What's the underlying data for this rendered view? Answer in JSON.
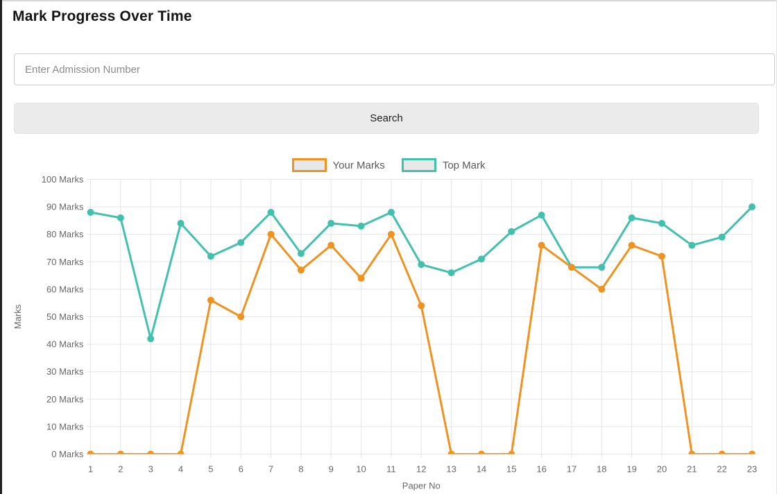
{
  "page": {
    "title": "Mark Progress Over Time"
  },
  "search": {
    "placeholder": "Enter Admission Number",
    "value": "",
    "button_label": "Search"
  },
  "chart_data": {
    "type": "line",
    "title": "",
    "xlabel": "Paper No",
    "ylabel": "Marks",
    "x": [
      1,
      2,
      3,
      4,
      5,
      6,
      7,
      8,
      9,
      10,
      11,
      12,
      13,
      14,
      15,
      16,
      17,
      18,
      19,
      20,
      21,
      22,
      23
    ],
    "series": [
      {
        "name": "Your Marks",
        "color": "#EF921F",
        "values": [
          0,
          0,
          0,
          0,
          56,
          50,
          80,
          67,
          76,
          64,
          80,
          54,
          0,
          0,
          0,
          76,
          68,
          60,
          76,
          72,
          0,
          0,
          0
        ]
      },
      {
        "name": "Top Mark",
        "color": "#41C0AE",
        "values": [
          88,
          86,
          42,
          84,
          72,
          77,
          88,
          73,
          84,
          83,
          88,
          69,
          66,
          71,
          81,
          87,
          68,
          68,
          86,
          84,
          76,
          79,
          90
        ]
      }
    ],
    "ylim": [
      0,
      100
    ],
    "ytick_step": 10,
    "ytick_suffix": " Marks",
    "grid": true,
    "legend_position": "top",
    "grid_color": "#e5e5e5",
    "tick_color": "#666666",
    "legend_box_fill": "#e8e8e8",
    "point_radius": 5,
    "line_width": 3
  }
}
